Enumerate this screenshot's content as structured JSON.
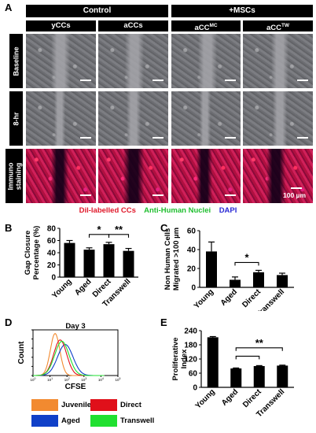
{
  "panel_letters": {
    "a": "A",
    "b": "B",
    "c": "C",
    "d": "D",
    "e": "E"
  },
  "panel_a": {
    "group_headers": [
      "Control",
      "+MSCs"
    ],
    "columns": [
      "yCCs",
      "aCCs",
      "aCC",
      "aCC"
    ],
    "column_superscripts": [
      "",
      "",
      "MC",
      "TW"
    ],
    "rows": [
      "Baseline",
      "8-hr",
      "Immuno staining"
    ],
    "scale_label": "100 µm"
  },
  "legend": {
    "red": "Dil-labelled CCs",
    "green": "Anti-Human Nuclei",
    "blue": "DAPI"
  },
  "colors": {
    "red": "#e0182a",
    "green": "#1fbf2f",
    "blue": "#2a2ad6",
    "juvenile": "#f28a30",
    "aged": "#1040c8",
    "direct": "#e0101a",
    "transwell": "#20e030"
  },
  "chart_data": [
    {
      "id": "B",
      "type": "bar",
      "ylabel": "Gap Closure Percentage (%)",
      "categories": [
        "Young",
        "Aged",
        "Direct",
        "Transwell"
      ],
      "values": [
        56,
        45,
        54,
        43
      ],
      "errors": [
        4,
        3,
        3,
        4
      ],
      "ylim": [
        0,
        80
      ],
      "yticks": [
        "0",
        "20",
        "40",
        "60",
        "80"
      ],
      "significance": [
        {
          "from": 1,
          "to": 2,
          "label": "*"
        },
        {
          "from": 2,
          "to": 3,
          "label": "**"
        }
      ]
    },
    {
      "id": "C",
      "type": "bar",
      "ylabel": "Non Human Cells Migrated >100 µm",
      "categories": [
        "Young",
        "Aged",
        "Direct",
        "Transwell"
      ],
      "values": [
        38,
        8,
        16,
        13
      ],
      "errors": [
        10,
        3,
        2,
        2
      ],
      "ylim": [
        0,
        60
      ],
      "yticks": [
        "0",
        "20",
        "40",
        "60"
      ],
      "significance": [
        {
          "from": 1,
          "to": 2,
          "label": "*"
        }
      ]
    },
    {
      "id": "D",
      "type": "histogram",
      "title": "Day 3",
      "xlabel": "CFSE",
      "ylabel": "Count",
      "xtick_exponents": [
        "0",
        "1",
        "2",
        "3",
        "4",
        "5"
      ],
      "series": [
        {
          "name": "Juvenile",
          "color": "#f28a30",
          "peak": 1.3
        },
        {
          "name": "Aged",
          "color": "#1040c8",
          "peak": 1.9
        },
        {
          "name": "Direct",
          "color": "#e0101a",
          "peak": 1.6
        },
        {
          "name": "Transwell",
          "color": "#20e030",
          "peak": 1.7
        }
      ]
    },
    {
      "id": "E",
      "type": "bar",
      "ylabel": "Proliferative Index",
      "categories": [
        "Young",
        "Aged",
        "Direct",
        "Transwell"
      ],
      "values": [
        212,
        80,
        90,
        92
      ],
      "errors": [
        3,
        2,
        2,
        2
      ],
      "ylim": [
        0,
        240
      ],
      "yticks": [
        "0",
        "60",
        "120",
        "180",
        "240"
      ],
      "significance": [
        {
          "from": 1,
          "to": 2,
          "label": ""
        },
        {
          "from": 1,
          "to": 3,
          "label": "**"
        }
      ]
    }
  ]
}
